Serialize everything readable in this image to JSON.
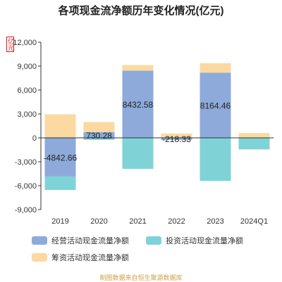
{
  "chart_data": {
    "type": "bar",
    "stacked": true,
    "title": "各项现金流净额历年变化情况(亿元)",
    "unit_label": "亿元",
    "categories": [
      "2019",
      "2020",
      "2021",
      "2022",
      "2023",
      "2024Q1"
    ],
    "ylim": [
      -9000,
      12000
    ],
    "yticks": [
      "12,000",
      "9,000",
      "6,000",
      "3,000",
      "0",
      "-3,000",
      "-6,000",
      "-9,000"
    ],
    "ytick_values": [
      12000,
      9000,
      6000,
      3000,
      0,
      -3000,
      -6000,
      -9000
    ],
    "grid": false,
    "legend_position": "bottom",
    "series": [
      {
        "name": "经营活动现金流量净额",
        "color": "#8eaadb",
        "values": [
          -4842.66,
          730.28,
          8432.58,
          -218.33,
          8164.46,
          50
        ],
        "data_labels": [
          "-4842.66",
          "730.28",
          "8432.58",
          "-218.33",
          "8164.46",
          ""
        ]
      },
      {
        "name": "投资活动现金流量净额",
        "color": "#7fd3d6",
        "values": [
          -1700,
          -250,
          -3900,
          -50,
          -5400,
          -1450
        ]
      },
      {
        "name": "筹资活动现金流量净额",
        "color": "#fcd9a0",
        "values": [
          2950,
          1250,
          700,
          550,
          1200,
          550
        ]
      }
    ]
  },
  "source_text": "制图数据来自恒生聚源数据库"
}
